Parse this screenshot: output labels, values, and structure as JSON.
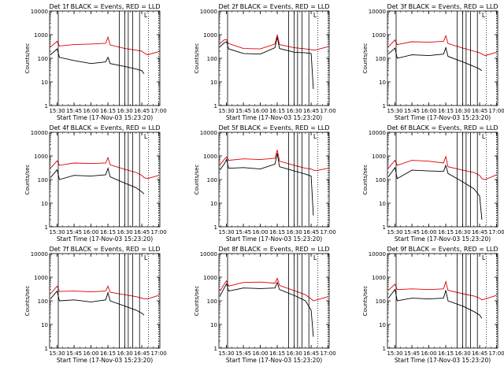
{
  "figure": {
    "y_axis_label": "Counts/sec",
    "x_axis_label": "Start Time (17-Nov-03 15:23:20)",
    "y_tick_labels": [
      "1",
      "10",
      "100",
      "1000",
      "10000"
    ],
    "x_tick_labels": [
      "15:30",
      "15:45",
      "16:00",
      "16:15",
      "16:30",
      "16:45",
      "17:00"
    ],
    "flag_text": "L",
    "colors": {
      "events": "#000000",
      "lld": "#dd0000",
      "axes": "#000000",
      "background": "#ffffff"
    }
  },
  "chart_data": [
    {
      "type": "line",
      "title": "Det 1f BLACK = Events, RED = LLD",
      "ylog": true,
      "ylim": [
        1,
        10000
      ],
      "xlim": [
        "15:23:20",
        "17:01:00"
      ],
      "x": [
        "15:24",
        "15:30",
        "15:32",
        "15:45",
        "16:00",
        "16:13",
        "16:15",
        "16:17",
        "16:30",
        "16:40",
        "16:45",
        "16:47",
        "16:50",
        "17:00"
      ],
      "series": [
        {
          "name": "Events",
          "color": "#000000",
          "values": [
            140,
            250,
            110,
            80,
            60,
            70,
            110,
            60,
            45,
            35,
            30,
            22,
            null,
            null
          ]
        },
        {
          "name": "LLD",
          "color": "#dd0000",
          "values": [
            300,
            520,
            330,
            380,
            400,
            430,
            780,
            370,
            260,
            220,
            200,
            170,
            140,
            190
          ]
        }
      ],
      "vlines_solid": [
        "15:31",
        "16:25",
        "16:30",
        "16:33",
        "16:37",
        "16:43"
      ],
      "vlines_dotted": [
        "16:51",
        "17:00"
      ]
    },
    {
      "type": "line",
      "title": "Det 2f BLACK = Events, RED = LLD",
      "ylog": true,
      "ylim": [
        1,
        10000
      ],
      "xlim": [
        "15:23:20",
        "17:01:00"
      ],
      "x": [
        "15:24",
        "15:28",
        "15:30",
        "15:32",
        "15:45",
        "16:00",
        "16:13",
        "16:15",
        "16:17",
        "16:30",
        "16:40",
        "16:45",
        "16:47",
        "16:50",
        "17:00"
      ],
      "series": [
        {
          "name": "Events",
          "color": "#000000",
          "values": [
            300,
            450,
            500,
            250,
            160,
            150,
            280,
            800,
            260,
            180,
            170,
            160,
            5,
            null,
            null
          ]
        },
        {
          "name": "LLD",
          "color": "#dd0000",
          "values": [
            420,
            600,
            620,
            420,
            260,
            250,
            400,
            1000,
            380,
            280,
            250,
            230,
            220,
            230,
            310
          ]
        }
      ],
      "vlines_solid": [
        "15:31",
        "16:25",
        "16:30",
        "16:33",
        "16:37",
        "16:43"
      ],
      "vlines_dotted": [
        "16:51",
        "17:00"
      ]
    },
    {
      "type": "line",
      "title": "Det 3f BLACK = Events, RED = LLD",
      "ylog": true,
      "ylim": [
        1,
        10000
      ],
      "xlim": [
        "15:23:20",
        "17:01:00"
      ],
      "x": [
        "15:24",
        "15:30",
        "15:32",
        "15:45",
        "16:00",
        "16:13",
        "16:15",
        "16:17",
        "16:30",
        "16:40",
        "16:45",
        "16:47",
        "16:50",
        "17:00"
      ],
      "series": [
        {
          "name": "Events",
          "color": "#000000",
          "values": [
            150,
            270,
            100,
            140,
            130,
            150,
            280,
            120,
            70,
            45,
            35,
            30,
            null,
            null
          ]
        },
        {
          "name": "LLD",
          "color": "#dd0000",
          "values": [
            300,
            600,
            380,
            500,
            480,
            520,
            900,
            420,
            270,
            200,
            170,
            150,
            130,
            180
          ]
        }
      ],
      "vlines_solid": [
        "15:31",
        "16:25",
        "16:30",
        "16:33",
        "16:37",
        "16:43"
      ],
      "vlines_dotted": [
        "16:51",
        "17:00"
      ]
    },
    {
      "type": "line",
      "title": "Det 4f BLACK = Events, RED = LLD",
      "ylog": true,
      "ylim": [
        1,
        10000
      ],
      "xlim": [
        "15:23:20",
        "17:01:00"
      ],
      "x": [
        "15:24",
        "15:30",
        "15:32",
        "15:45",
        "16:00",
        "16:13",
        "16:15",
        "16:17",
        "16:30",
        "16:40",
        "16:45",
        "16:47",
        "16:50",
        "17:00"
      ],
      "series": [
        {
          "name": "Events",
          "color": "#000000",
          "values": [
            120,
            260,
            100,
            150,
            140,
            160,
            300,
            130,
            70,
            45,
            30,
            25,
            null,
            null
          ]
        },
        {
          "name": "LLD",
          "color": "#dd0000",
          "values": [
            300,
            620,
            400,
            500,
            480,
            500,
            850,
            420,
            270,
            200,
            150,
            120,
            110,
            150
          ]
        }
      ],
      "vlines_solid": [
        "15:31",
        "16:25",
        "16:30",
        "16:33",
        "16:37",
        "16:43"
      ],
      "vlines_dotted": [
        "16:51",
        "17:00"
      ]
    },
    {
      "type": "line",
      "title": "Det 5f BLACK = Events, RED = LLD",
      "ylog": true,
      "ylim": [
        1,
        10000
      ],
      "xlim": [
        "15:23:20",
        "17:01:00"
      ],
      "x": [
        "15:24",
        "15:28",
        "15:30",
        "15:32",
        "15:45",
        "16:00",
        "16:13",
        "16:15",
        "16:17",
        "16:30",
        "16:40",
        "16:45",
        "16:47",
        "16:50",
        "17:00"
      ],
      "series": [
        {
          "name": "Events",
          "color": "#000000",
          "values": [
            250,
            450,
            700,
            300,
            320,
            280,
            450,
            1300,
            350,
            230,
            170,
            140,
            3,
            null,
            null
          ]
        },
        {
          "name": "LLD",
          "color": "#dd0000",
          "values": [
            400,
            700,
            900,
            650,
            750,
            700,
            800,
            1800,
            600,
            400,
            300,
            280,
            250,
            240,
            300
          ]
        }
      ],
      "vlines_solid": [
        "15:31",
        "16:25",
        "16:30",
        "16:33",
        "16:37",
        "16:43"
      ],
      "vlines_dotted": [
        "16:51",
        "17:00"
      ]
    },
    {
      "type": "line",
      "title": "Det 6f BLACK = Events, RED = LLD",
      "ylog": true,
      "ylim": [
        1,
        10000
      ],
      "xlim": [
        "15:23:20",
        "17:01:00"
      ],
      "x": [
        "15:24",
        "15:30",
        "15:32",
        "15:45",
        "16:00",
        "16:13",
        "16:15",
        "16:17",
        "16:30",
        "16:40",
        "16:45",
        "16:47",
        "16:50",
        "17:00"
      ],
      "series": [
        {
          "name": "Events",
          "color": "#000000",
          "values": [
            130,
            320,
            110,
            250,
            230,
            220,
            400,
            180,
            80,
            40,
            20,
            2,
            null,
            null
          ]
        },
        {
          "name": "LLD",
          "color": "#dd0000",
          "values": [
            300,
            650,
            400,
            650,
            600,
            500,
            950,
            350,
            250,
            200,
            150,
            110,
            100,
            160
          ]
        }
      ],
      "vlines_solid": [
        "15:31",
        "16:25",
        "16:30",
        "16:33",
        "16:37",
        "16:43"
      ],
      "vlines_dotted": [
        "16:51",
        "17:00"
      ]
    },
    {
      "type": "line",
      "title": "Det 7f BLACK = Events, RED = LLD",
      "ylog": true,
      "ylim": [
        1,
        10000
      ],
      "xlim": [
        "15:23:20",
        "17:01:00"
      ],
      "x": [
        "15:24",
        "15:30",
        "15:32",
        "15:45",
        "16:00",
        "16:13",
        "16:15",
        "16:17",
        "16:30",
        "16:40",
        "16:45",
        "16:47",
        "16:50",
        "17:00"
      ],
      "series": [
        {
          "name": "Events",
          "color": "#000000",
          "values": [
            120,
            260,
            100,
            110,
            90,
            110,
            220,
            100,
            60,
            40,
            30,
            25,
            null,
            null
          ]
        },
        {
          "name": "LLD",
          "color": "#dd0000",
          "values": [
            200,
            420,
            250,
            260,
            240,
            260,
            420,
            230,
            180,
            150,
            130,
            120,
            120,
            170
          ]
        }
      ],
      "vlines_solid": [
        "15:31",
        "16:25",
        "16:30",
        "16:33",
        "16:37",
        "16:43"
      ],
      "vlines_dotted": [
        "16:51",
        "17:00"
      ]
    },
    {
      "type": "line",
      "title": "Det 8f BLACK = Events, RED = LLD",
      "ylog": true,
      "ylim": [
        1,
        10000
      ],
      "xlim": [
        "15:23:20",
        "17:01:00"
      ],
      "x": [
        "15:24",
        "15:28",
        "15:30",
        "15:32",
        "15:45",
        "16:00",
        "16:13",
        "16:15",
        "16:17",
        "16:30",
        "16:40",
        "16:45",
        "16:47",
        "16:50",
        "17:00"
      ],
      "series": [
        {
          "name": "Events",
          "color": "#000000",
          "values": [
            150,
            350,
            520,
            260,
            350,
            330,
            350,
            600,
            300,
            170,
            100,
            40,
            3,
            null,
            null
          ]
        },
        {
          "name": "LLD",
          "color": "#dd0000",
          "values": [
            250,
            500,
            700,
            420,
            600,
            620,
            560,
            900,
            450,
            270,
            180,
            120,
            100,
            110,
            150
          ]
        }
      ],
      "vlines_solid": [
        "15:31",
        "16:25",
        "16:30",
        "16:33",
        "16:37",
        "16:43"
      ],
      "vlines_dotted": [
        "16:51",
        "17:00"
      ]
    },
    {
      "type": "line",
      "title": "Det 9f BLACK = Events, RED = LLD",
      "ylog": true,
      "ylim": [
        1,
        10000
      ],
      "xlim": [
        "15:23:20",
        "17:01:00"
      ],
      "x": [
        "15:24",
        "15:30",
        "15:32",
        "15:45",
        "16:00",
        "16:13",
        "16:15",
        "16:17",
        "16:30",
        "16:40",
        "16:45",
        "16:47",
        "16:50",
        "17:00"
      ],
      "series": [
        {
          "name": "Events",
          "color": "#000000",
          "values": [
            130,
            300,
            100,
            130,
            120,
            130,
            280,
            100,
            60,
            35,
            25,
            18,
            null,
            null
          ]
        },
        {
          "name": "LLD",
          "color": "#dd0000",
          "values": [
            280,
            500,
            300,
            320,
            300,
            320,
            650,
            280,
            200,
            160,
            130,
            110,
            120,
            170
          ]
        }
      ],
      "vlines_solid": [
        "15:31",
        "16:25",
        "16:30",
        "16:33",
        "16:37",
        "16:43"
      ],
      "vlines_dotted": [
        "16:51",
        "17:00"
      ]
    }
  ]
}
